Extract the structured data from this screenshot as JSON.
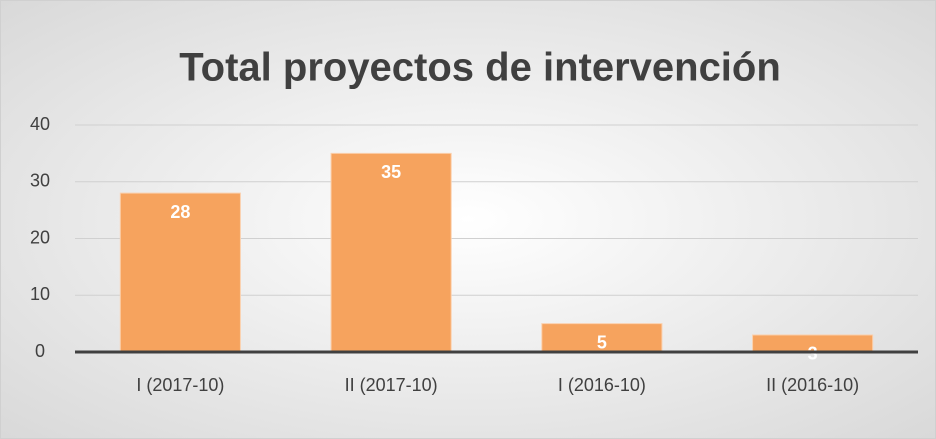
{
  "chart_data": {
    "type": "bar",
    "title": "Total proyectos de intervención",
    "categories": [
      "I (2017-10)",
      "II (2017-10)",
      "I (2016-10)",
      "II (2016-10)"
    ],
    "values": [
      28,
      35,
      5,
      3
    ],
    "color": "#f6a35e",
    "ylim": [
      0,
      40
    ],
    "yticks": [
      0,
      10,
      20,
      30,
      40
    ],
    "grid": true
  }
}
